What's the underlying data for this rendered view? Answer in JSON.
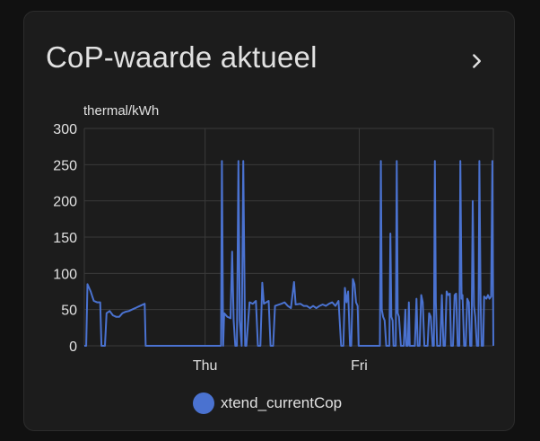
{
  "card": {
    "title": "CoP-waarde aktueel",
    "more_icon": "chevron-right-icon"
  },
  "chart_data": {
    "type": "line",
    "ylabel": "thermal/kWh",
    "ylim": [
      0,
      300
    ],
    "yticks": [
      0,
      50,
      100,
      150,
      200,
      250,
      300
    ],
    "x_tick_labels": [
      "Thu",
      "Fri"
    ],
    "grid": true,
    "legend_position": "bottom",
    "series": [
      {
        "name": "xtend_currentCop",
        "color": "#4a72d0",
        "points": [
          [
            0,
            0
          ],
          [
            0.6,
            0
          ],
          [
            1,
            85
          ],
          [
            2,
            75
          ],
          [
            2.5,
            68
          ],
          [
            3,
            62
          ],
          [
            4,
            60
          ],
          [
            5,
            60
          ],
          [
            5.4,
            0
          ],
          [
            6.5,
            0
          ],
          [
            7,
            45
          ],
          [
            8,
            48
          ],
          [
            9,
            42
          ],
          [
            10,
            40
          ],
          [
            11,
            40
          ],
          [
            12,
            45
          ],
          [
            13,
            47
          ],
          [
            14,
            48
          ],
          [
            15,
            50
          ],
          [
            16,
            52
          ],
          [
            17,
            54
          ],
          [
            18,
            56
          ],
          [
            19,
            58
          ],
          [
            19.3,
            0
          ],
          [
            20,
            0
          ],
          [
            42,
            0
          ],
          [
            43,
            0
          ],
          [
            43.3,
            255
          ],
          [
            43.7,
            0
          ],
          [
            44,
            45
          ],
          [
            45,
            40
          ],
          [
            46,
            38
          ],
          [
            46.5,
            130
          ],
          [
            47,
            35
          ],
          [
            47.5,
            0
          ],
          [
            48,
            0
          ],
          [
            48.5,
            255
          ],
          [
            48.9,
            35
          ],
          [
            49.5,
            0
          ],
          [
            50,
            255
          ],
          [
            50.6,
            0
          ],
          [
            51,
            0
          ],
          [
            52,
            60
          ],
          [
            53,
            58
          ],
          [
            54,
            62
          ],
          [
            54.6,
            0
          ],
          [
            55.4,
            0
          ],
          [
            56,
            87
          ],
          [
            56.5,
            58
          ],
          [
            58,
            62
          ],
          [
            58.6,
            0
          ],
          [
            59.4,
            0
          ],
          [
            60,
            55
          ],
          [
            62,
            58
          ],
          [
            63,
            60
          ],
          [
            64,
            55
          ],
          [
            65,
            52
          ],
          [
            66,
            88
          ],
          [
            66.5,
            57
          ],
          [
            68,
            58
          ],
          [
            69,
            55
          ],
          [
            70,
            55
          ],
          [
            71,
            52
          ],
          [
            72,
            55
          ],
          [
            73,
            52
          ],
          [
            74,
            55
          ],
          [
            75,
            57
          ],
          [
            76,
            55
          ],
          [
            77,
            58
          ],
          [
            78,
            60
          ],
          [
            79,
            55
          ],
          [
            80,
            62
          ],
          [
            80.8,
            0
          ],
          [
            81.5,
            0
          ],
          [
            82,
            80
          ],
          [
            82.5,
            60
          ],
          [
            83,
            75
          ],
          [
            83.6,
            0
          ],
          [
            84,
            0
          ],
          [
            84.5,
            92
          ],
          [
            85,
            85
          ],
          [
            85.5,
            60
          ],
          [
            86,
            55
          ],
          [
            86.3,
            0
          ],
          [
            87,
            0
          ],
          [
            93,
            0
          ],
          [
            93.3,
            255
          ],
          [
            93.6,
            50
          ],
          [
            94,
            40
          ],
          [
            94.5,
            35
          ],
          [
            95,
            0
          ],
          [
            96,
            0
          ],
          [
            96.3,
            155
          ],
          [
            96.6,
            40
          ],
          [
            97,
            35
          ],
          [
            97.3,
            0
          ],
          [
            98,
            0
          ],
          [
            98.3,
            255
          ],
          [
            98.6,
            45
          ],
          [
            99,
            40
          ],
          [
            99.6,
            0
          ],
          [
            100.5,
            0
          ],
          [
            101,
            50
          ],
          [
            101.3,
            0
          ],
          [
            101.8,
            0
          ],
          [
            102.1,
            60
          ],
          [
            102.4,
            0
          ],
          [
            104,
            0
          ],
          [
            104.5,
            65
          ],
          [
            104.9,
            0
          ],
          [
            105.5,
            0
          ],
          [
            106,
            70
          ],
          [
            106.5,
            60
          ],
          [
            107,
            0
          ],
          [
            108,
            0
          ],
          [
            108.5,
            45
          ],
          [
            109,
            40
          ],
          [
            109.6,
            0
          ],
          [
            110,
            0
          ],
          [
            110.3,
            255
          ],
          [
            110.6,
            60
          ],
          [
            111,
            0
          ],
          [
            112,
            0
          ],
          [
            112.5,
            70
          ],
          [
            113,
            0
          ],
          [
            113.5,
            0
          ],
          [
            114,
            75
          ],
          [
            114.5,
            70
          ],
          [
            115,
            72
          ],
          [
            115.4,
            0
          ],
          [
            116,
            0
          ],
          [
            116.5,
            70
          ],
          [
            117,
            72
          ],
          [
            117.5,
            0
          ],
          [
            118,
            0
          ],
          [
            118.3,
            255
          ],
          [
            118.7,
            65
          ],
          [
            119,
            70
          ],
          [
            119.5,
            0
          ],
          [
            120,
            0
          ],
          [
            120.5,
            65
          ],
          [
            121,
            60
          ],
          [
            121.4,
            0
          ],
          [
            121.8,
            0
          ],
          [
            122.2,
            200
          ],
          [
            122.6,
            55
          ],
          [
            123,
            40
          ],
          [
            123.5,
            0
          ],
          [
            124,
            0
          ],
          [
            124.3,
            255
          ],
          [
            124.7,
            60
          ],
          [
            125,
            0
          ],
          [
            125.5,
            0
          ],
          [
            125.8,
            68
          ],
          [
            126.5,
            65
          ],
          [
            127,
            70
          ],
          [
            127.5,
            65
          ],
          [
            128,
            68
          ],
          [
            128.4,
            255
          ],
          [
            128.7,
            0
          ]
        ],
        "x_max": 128.7,
        "x_ticks_at": [
          38,
          86.5
        ]
      }
    ]
  }
}
